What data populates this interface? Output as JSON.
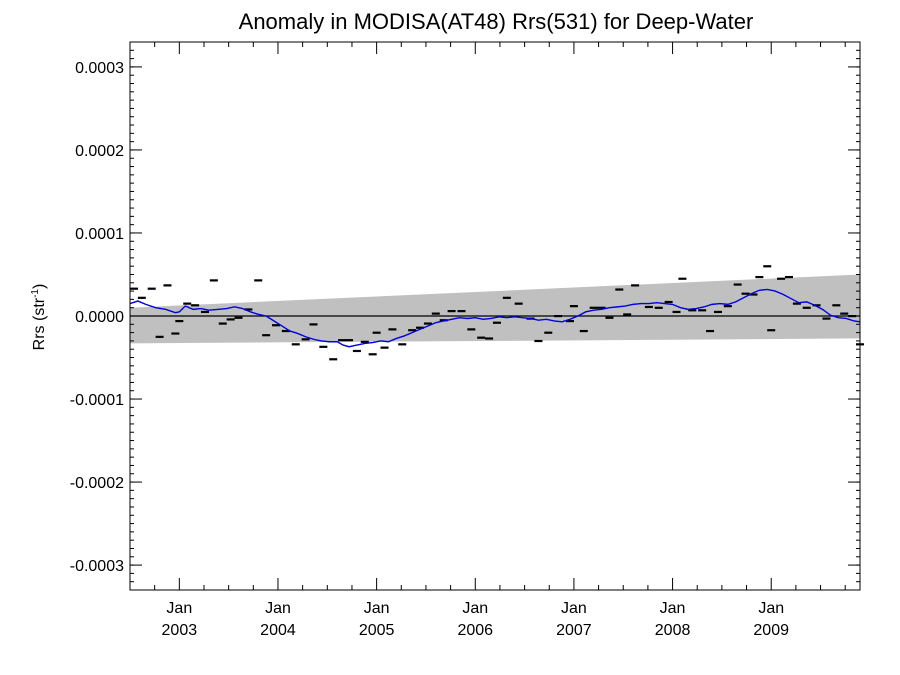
{
  "chart_data": {
    "type": "line",
    "title": "Anomaly in MODISA(AT48) Rrs(531) for Deep-Water",
    "ylabel": "Rrs (str",
    "ylabel_sup": "-1",
    "ylabel_close": ")",
    "xlabel": "",
    "xlim": [
      2002.5,
      2009.9
    ],
    "ylim": [
      -0.00033,
      0.00033
    ],
    "yticks": [
      {
        "value": 0.0003,
        "label": "0.0003"
      },
      {
        "value": 0.0002,
        "label": "0.0002"
      },
      {
        "value": 0.0001,
        "label": "0.0001"
      },
      {
        "value": 0.0,
        "label": "0.0000"
      },
      {
        "value": -0.0001,
        "label": "-0.0001"
      },
      {
        "value": -0.0002,
        "label": "-0.0002"
      },
      {
        "value": -0.0003,
        "label": "-0.0003"
      }
    ],
    "xticks": [
      {
        "value": 2003.0,
        "month": "Jan",
        "year": "2003"
      },
      {
        "value": 2004.0,
        "month": "Jan",
        "year": "2004"
      },
      {
        "value": 2005.0,
        "month": "Jan",
        "year": "2005"
      },
      {
        "value": 2006.0,
        "month": "Jan",
        "year": "2006"
      },
      {
        "value": 2007.0,
        "month": "Jan",
        "year": "2007"
      },
      {
        "value": 2008.0,
        "month": "Jan",
        "year": "2008"
      },
      {
        "value": 2009.0,
        "month": "Jan",
        "year": "2009"
      }
    ],
    "band": {
      "name": "confidence interval",
      "color": "#c0c0c0",
      "x": [
        2002.5,
        2009.9
      ],
      "upper": [
        1e-05,
        5e-05
      ],
      "lower": [
        -3.3e-05,
        -2.7e-05
      ]
    },
    "zero_line": {
      "y": 0.0,
      "color": "#000000"
    },
    "series": [
      {
        "kind": "markers",
        "color": "#000000",
        "points": [
          [
            2002.54,
            3.3e-05
          ],
          [
            2002.62,
            2.2e-05
          ],
          [
            2002.72,
            3.3e-05
          ],
          [
            2002.8,
            -2.5e-05
          ],
          [
            2002.88,
            3.7e-05
          ],
          [
            2002.96,
            -2.1e-05
          ],
          [
            2003.0,
            -6e-06
          ],
          [
            2003.08,
            1.5e-05
          ],
          [
            2003.16,
            1.3e-05
          ],
          [
            2003.26,
            5e-06
          ],
          [
            2003.35,
            4.3e-05
          ],
          [
            2003.44,
            -9e-06
          ],
          [
            2003.52,
            -4e-06
          ],
          [
            2003.6,
            -2e-06
          ],
          [
            2003.7,
            8e-06
          ],
          [
            2003.8,
            4.3e-05
          ],
          [
            2003.88,
            -2.3e-05
          ],
          [
            2003.98,
            -1.1e-05
          ],
          [
            2004.08,
            -1.8e-05
          ],
          [
            2004.18,
            -3.4e-05
          ],
          [
            2004.28,
            -2.8e-05
          ],
          [
            2004.36,
            -1e-05
          ],
          [
            2004.46,
            -3.7e-05
          ],
          [
            2004.56,
            -5.2e-05
          ],
          [
            2004.65,
            -2.9e-05
          ],
          [
            2004.72,
            -2.9e-05
          ],
          [
            2004.8,
            -4.2e-05
          ],
          [
            2004.88,
            -3.1e-05
          ],
          [
            2004.96,
            -4.6e-05
          ],
          [
            2005.0,
            -2e-05
          ],
          [
            2005.08,
            -3.8e-05
          ],
          [
            2005.16,
            -1.6e-05
          ],
          [
            2005.26,
            -3.4e-05
          ],
          [
            2005.36,
            -1.7e-05
          ],
          [
            2005.44,
            -1.4e-05
          ],
          [
            2005.52,
            -9e-06
          ],
          [
            2005.6,
            3e-06
          ],
          [
            2005.68,
            -5e-06
          ],
          [
            2005.76,
            6e-06
          ],
          [
            2005.86,
            6e-06
          ],
          [
            2005.96,
            -1.6e-05
          ],
          [
            2006.06,
            -2.6e-05
          ],
          [
            2006.14,
            -2.7e-05
          ],
          [
            2006.22,
            -8e-06
          ],
          [
            2006.32,
            2.2e-05
          ],
          [
            2006.44,
            1.5e-05
          ],
          [
            2006.56,
            -3e-06
          ],
          [
            2006.64,
            -3e-05
          ],
          [
            2006.74,
            -2e-05
          ],
          [
            2006.84,
            0.0
          ],
          [
            2006.96,
            -6e-06
          ],
          [
            2007.0,
            1.2e-05
          ],
          [
            2007.1,
            -1.8e-05
          ],
          [
            2007.2,
            1e-05
          ],
          [
            2007.28,
            1e-05
          ],
          [
            2007.36,
            -2e-06
          ],
          [
            2007.46,
            3.2e-05
          ],
          [
            2007.54,
            2e-06
          ],
          [
            2007.62,
            3.7e-05
          ],
          [
            2007.76,
            1.1e-05
          ],
          [
            2007.86,
            1e-05
          ],
          [
            2007.96,
            1.7e-05
          ],
          [
            2008.04,
            5e-06
          ],
          [
            2008.1,
            4.5e-05
          ],
          [
            2008.2,
            7e-06
          ],
          [
            2008.3,
            7e-06
          ],
          [
            2008.38,
            -1.8e-05
          ],
          [
            2008.46,
            5e-06
          ],
          [
            2008.56,
            1.2e-05
          ],
          [
            2008.66,
            3.8e-05
          ],
          [
            2008.74,
            2.7e-05
          ],
          [
            2008.82,
            2.6e-05
          ],
          [
            2008.88,
            4.7e-05
          ],
          [
            2008.96,
            6e-05
          ],
          [
            2009.0,
            -1.7e-05
          ],
          [
            2009.1,
            4.5e-05
          ],
          [
            2009.18,
            4.7e-05
          ],
          [
            2009.26,
            1.5e-05
          ],
          [
            2009.36,
            1e-05
          ],
          [
            2009.46,
            1.3e-05
          ],
          [
            2009.56,
            -3e-06
          ],
          [
            2009.66,
            1.3e-05
          ],
          [
            2009.74,
            3e-06
          ],
          [
            2009.82,
            0.0
          ],
          [
            2009.9,
            -3.4e-05
          ]
        ]
      },
      {
        "kind": "line",
        "color": "#0000e0",
        "points": [
          [
            2002.5,
            1.5e-05
          ],
          [
            2002.58,
            1.8e-05
          ],
          [
            2002.66,
            1.4e-05
          ],
          [
            2002.76,
            1e-05
          ],
          [
            2002.86,
            8e-06
          ],
          [
            2002.96,
            4e-06
          ],
          [
            2003.0,
            5e-06
          ],
          [
            2003.06,
            1.2e-05
          ],
          [
            2003.14,
            8e-06
          ],
          [
            2003.22,
            9e-06
          ],
          [
            2003.3,
            7e-06
          ],
          [
            2003.4,
            8e-06
          ],
          [
            2003.48,
            9e-06
          ],
          [
            2003.56,
            1.1e-05
          ],
          [
            2003.64,
            9e-06
          ],
          [
            2003.72,
            5e-06
          ],
          [
            2003.8,
            2e-06
          ],
          [
            2003.88,
            0.0
          ],
          [
            2003.96,
            -6e-06
          ],
          [
            2004.04,
            -1.2e-05
          ],
          [
            2004.12,
            -1.8e-05
          ],
          [
            2004.2,
            -2.1e-05
          ],
          [
            2004.28,
            -2.5e-05
          ],
          [
            2004.36,
            -2.8e-05
          ],
          [
            2004.44,
            -3e-05
          ],
          [
            2004.52,
            -3.1e-05
          ],
          [
            2004.6,
            -3.1e-05
          ],
          [
            2004.66,
            -3.5e-05
          ],
          [
            2004.72,
            -3.7e-05
          ],
          [
            2004.8,
            -3.5e-05
          ],
          [
            2004.88,
            -3.3e-05
          ],
          [
            2004.96,
            -3.2e-05
          ],
          [
            2005.04,
            -3e-05
          ],
          [
            2005.12,
            -3.1e-05
          ],
          [
            2005.2,
            -2.7e-05
          ],
          [
            2005.28,
            -2.4e-05
          ],
          [
            2005.36,
            -2e-05
          ],
          [
            2005.44,
            -1.6e-05
          ],
          [
            2005.52,
            -1.2e-05
          ],
          [
            2005.6,
            -8e-06
          ],
          [
            2005.68,
            -6e-06
          ],
          [
            2005.76,
            -4e-06
          ],
          [
            2005.84,
            -2e-06
          ],
          [
            2005.92,
            -3e-06
          ],
          [
            2006.0,
            -2e-06
          ],
          [
            2006.08,
            -4e-06
          ],
          [
            2006.16,
            -3e-06
          ],
          [
            2006.24,
            -1e-06
          ],
          [
            2006.32,
            -2e-06
          ],
          [
            2006.4,
            -1e-06
          ],
          [
            2006.48,
            -2e-06
          ],
          [
            2006.56,
            -3e-06
          ],
          [
            2006.64,
            -5e-06
          ],
          [
            2006.72,
            -4e-06
          ],
          [
            2006.8,
            -6e-06
          ],
          [
            2006.88,
            -7e-06
          ],
          [
            2006.96,
            -4e-06
          ],
          [
            2007.04,
            0.0
          ],
          [
            2007.12,
            5e-06
          ],
          [
            2007.2,
            7e-06
          ],
          [
            2007.28,
            8e-06
          ],
          [
            2007.36,
            1e-05
          ],
          [
            2007.44,
            1.1e-05
          ],
          [
            2007.52,
            1.2e-05
          ],
          [
            2007.6,
            1.4e-05
          ],
          [
            2007.68,
            1.5e-05
          ],
          [
            2007.76,
            1.5e-05
          ],
          [
            2007.84,
            1.6e-05
          ],
          [
            2007.92,
            1.5e-05
          ],
          [
            2008.0,
            1.4e-05
          ],
          [
            2008.08,
            1e-05
          ],
          [
            2008.16,
            8e-06
          ],
          [
            2008.24,
            9e-06
          ],
          [
            2008.32,
            1.1e-05
          ],
          [
            2008.4,
            1.4e-05
          ],
          [
            2008.48,
            1.5e-05
          ],
          [
            2008.56,
            1.4e-05
          ],
          [
            2008.64,
            1.7e-05
          ],
          [
            2008.72,
            2.2e-05
          ],
          [
            2008.8,
            2.7e-05
          ],
          [
            2008.88,
            3.1e-05
          ],
          [
            2008.96,
            3.2e-05
          ],
          [
            2009.04,
            3e-05
          ],
          [
            2009.12,
            2.6e-05
          ],
          [
            2009.2,
            2.1e-05
          ],
          [
            2009.28,
            1.6e-05
          ],
          [
            2009.36,
            1.7e-05
          ],
          [
            2009.44,
            1.3e-05
          ],
          [
            2009.52,
            8e-06
          ],
          [
            2009.6,
            1e-06
          ],
          [
            2009.68,
            -2e-06
          ],
          [
            2009.76,
            -3e-06
          ],
          [
            2009.84,
            -6e-06
          ],
          [
            2009.9,
            -7e-06
          ]
        ]
      }
    ]
  }
}
